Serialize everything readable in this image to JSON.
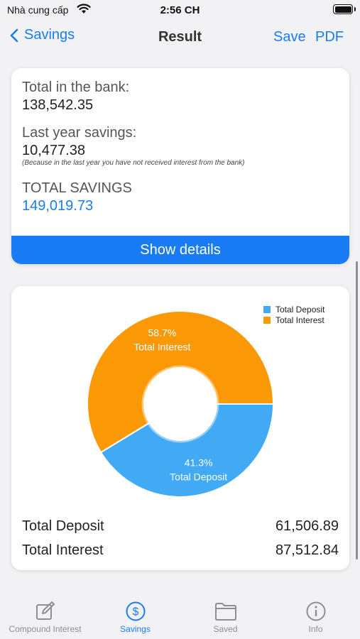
{
  "status_bar": {
    "carrier": "Nhà cung cấp",
    "time": "2:56 CH"
  },
  "nav": {
    "back_label": "Savings",
    "title": "Result",
    "save_label": "Save",
    "pdf_label": "PDF"
  },
  "summary": {
    "bank_label": "Total in the bank:",
    "bank_value": "138,542.35",
    "last_year_label": "Last year savings:",
    "last_year_value": "10,477.38",
    "last_year_note": "(Because in the last year you have not received interest from the bank)",
    "total_label": "TOTAL SAVINGS",
    "total_value": "149,019.73",
    "show_details_label": "Show details"
  },
  "chart_data": {
    "type": "pie",
    "donut": true,
    "legend_position": "top-right",
    "slices": [
      {
        "name": "Total Deposit",
        "percent": 41.3,
        "label": "41.3%",
        "color": "#42aaf5"
      },
      {
        "name": "Total Interest",
        "percent": 58.7,
        "label": "58.7%",
        "color": "#fb9805"
      }
    ]
  },
  "totals": {
    "deposit_label": "Total Deposit",
    "deposit_value": "61,506.89",
    "interest_label": "Total Interest",
    "interest_value": "87,512.84"
  },
  "tabbar": {
    "tabs": [
      {
        "label": "Compound Interest",
        "icon": "edit-icon"
      },
      {
        "label": "Savings",
        "icon": "dollar-icon"
      },
      {
        "label": "Saved",
        "icon": "folder-icon"
      },
      {
        "label": "Info",
        "icon": "info-icon"
      }
    ],
    "active_index": 1
  },
  "colors": {
    "accent": "#1a7cf5",
    "deposit": "#42aaf5",
    "interest": "#fb9805"
  }
}
